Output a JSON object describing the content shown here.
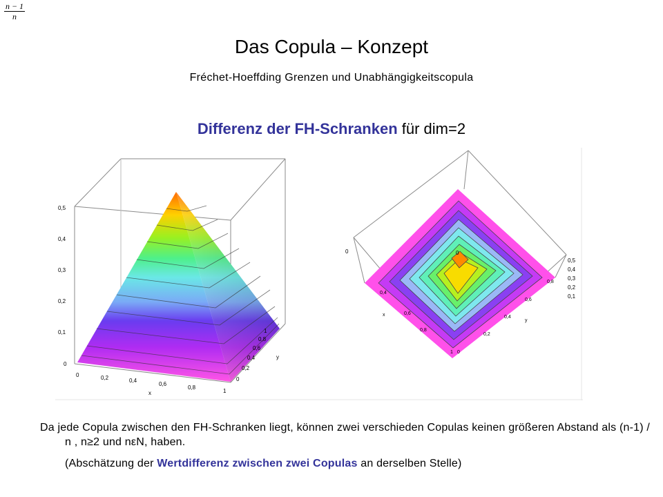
{
  "formula": {
    "numerator": "n − 1",
    "denominator": "n"
  },
  "title": "Das Copula – Konzept",
  "subtitle": "Fréchet-Hoeffding Grenzen und Unabhängigkeitscopula",
  "heading": {
    "highlight": "Differenz der FH-Schranken",
    "rest": " für dim=2"
  },
  "plot_left": {
    "z_ticks": [
      "0,5",
      "0,4",
      "0,3",
      "0,2",
      "0,1",
      "0"
    ],
    "x_ticks": [
      "0",
      "0,2",
      "0,4",
      "0,6",
      "0,8",
      "1"
    ],
    "y_ticks": [
      "0",
      "0,2",
      "0,4",
      "0,6",
      "0,8",
      "1"
    ],
    "x_label": "x",
    "y_label": "y"
  },
  "plot_right": {
    "z_ticks": [
      "0,5",
      "0,4",
      "0,3",
      "0,2",
      "0,1"
    ],
    "left_tick": "0",
    "x_ticks": [
      "1",
      "0,8",
      "0,6",
      "0,4"
    ],
    "y_ticks": [
      "0",
      "0,2",
      "0,4",
      "0,6",
      "0,8"
    ],
    "x_label": "x",
    "y_label": "y",
    "peak_label": "0"
  },
  "paragraphs": {
    "p1": "Da jede Copula zwischen den FH-Schranken liegt, können zwei verschieden Copulas keinen größeren Abstand als (n-1) / n , n≥2 und nεN, haben.",
    "p2_before": "(Abschätzung der ",
    "p2_highlight": "Wertdifferenz zwischen zwei Copulas",
    "p2_after": " an derselben Stelle)"
  },
  "colors": {
    "heading_blue": "#33339a"
  }
}
